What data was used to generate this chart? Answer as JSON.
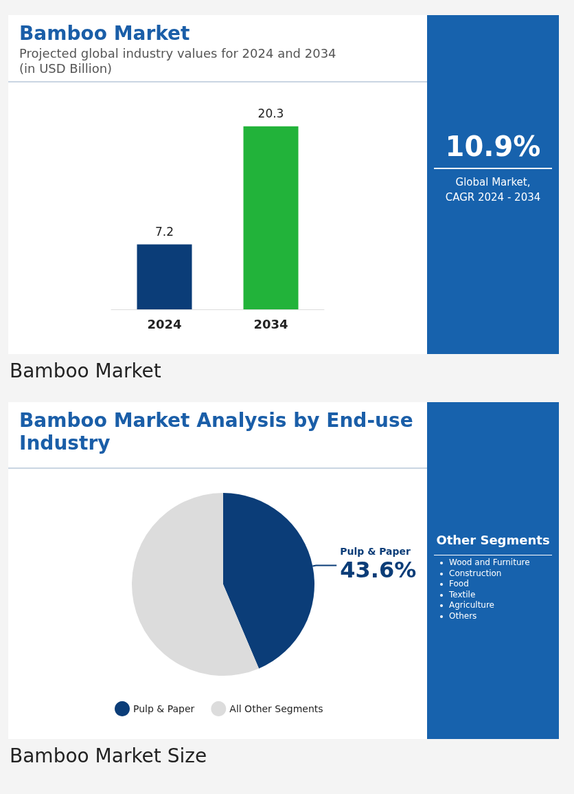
{
  "chart_data": [
    {
      "type": "bar",
      "title": "Bamboo Market",
      "subtitle": "Projected global industry values for 2024 and 2034 (in USD Billion)",
      "categories": [
        "2024",
        "2034"
      ],
      "values": [
        7.2,
        20.3
      ],
      "colors": [
        "#0b3d78",
        "#22b33a"
      ],
      "data_labels": true,
      "annotations": [
        "10.9%",
        "Global Market, CAGR 2024 - 2034",
        "Bamboo Market"
      ]
    },
    {
      "type": "pie",
      "title": "Bamboo Market Analysis by End-use Industry",
      "categories": [
        "Pulp & Paper",
        "All Other Segments"
      ],
      "values": [
        43.6,
        56.4
      ],
      "colors": [
        "#0b3d78",
        "#dcdcdc"
      ],
      "value_labels": [
        "43.6%",
        null
      ],
      "legend": "bottom",
      "annotations": [
        "Other Segments",
        "Wood and Furniture",
        "Construction",
        "Food",
        "Textile",
        "Agriculture",
        "Others",
        "Bamboo Market Size"
      ]
    }
  ]
}
